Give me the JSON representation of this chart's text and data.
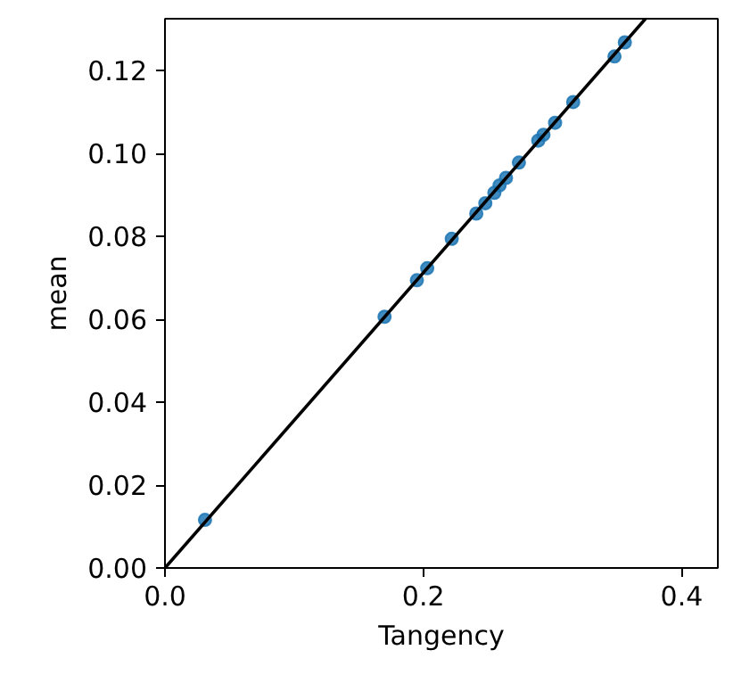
{
  "chart_data": {
    "type": "scatter",
    "xlabel": "Tangency",
    "ylabel": "mean",
    "xlim": [
      0,
      0.428
    ],
    "ylim": [
      0,
      0.1325
    ],
    "xticks": [
      {
        "value": 0,
        "label": "0.0"
      },
      {
        "value": 0.2,
        "label": "0.2"
      },
      {
        "value": 0.4,
        "label": "0.4"
      }
    ],
    "yticks": [
      {
        "value": 0,
        "label": "0.00"
      },
      {
        "value": 0.02,
        "label": "0.02"
      },
      {
        "value": 0.04,
        "label": "0.04"
      },
      {
        "value": 0.06,
        "label": "0.06"
      },
      {
        "value": 0.08,
        "label": "0.08"
      },
      {
        "value": 0.1,
        "label": "0.10"
      },
      {
        "value": 0.12,
        "label": "0.12"
      }
    ],
    "grid": false,
    "marker": "circle",
    "series": [
      {
        "color": "#1f77b4",
        "x": [
          0.031,
          0.17,
          0.195,
          0.203,
          0.222,
          0.241,
          0.248,
          0.255,
          0.259,
          0.264,
          0.274,
          0.289,
          0.293,
          0.302,
          0.316,
          0.348,
          0.356
        ],
        "values": [
          0.0116,
          0.0606,
          0.0694,
          0.0723,
          0.0794,
          0.0855,
          0.088,
          0.0905,
          0.0923,
          0.0941,
          0.0978,
          0.1031,
          0.1045,
          0.1074,
          0.1124,
          0.1234,
          0.1268
        ]
      },
      {
        "type": "line",
        "color": "#000000",
        "line_style": "solid",
        "marker": "none",
        "x": [
          0,
          0.372
        ],
        "values": [
          0,
          0.1325
        ]
      }
    ]
  }
}
